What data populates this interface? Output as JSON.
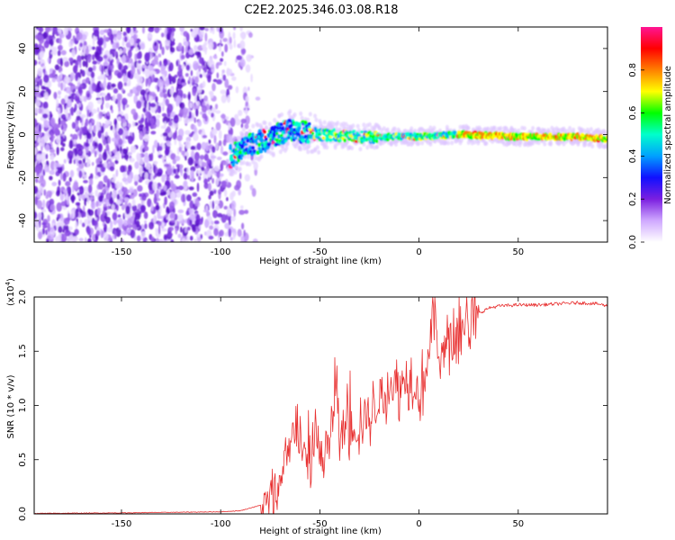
{
  "title": "C2E2.2025.346.03.08.R18",
  "chart_data": [
    {
      "type": "heatmap",
      "xlabel": "Height of straight line (km)",
      "ylabel": "Frequency (Hz)",
      "xlim": [
        -194,
        95
      ],
      "ylim": [
        -50,
        50
      ],
      "xticks": [
        -150,
        -100,
        -50,
        0,
        50
      ],
      "yticks": [
        -40,
        -20,
        0,
        20,
        40
      ],
      "xtick_labels": [
        "-150",
        "-100",
        "-50",
        "0",
        "50"
      ],
      "ytick_labels": [
        "-40",
        "-20",
        "0",
        "20",
        "40"
      ],
      "description_of_content": "noisy purple speckle for heights below about -90 km, a bright narrow ridge centered near 0 Hz from about -90 km to 95 km",
      "ridge": {
        "frequency_hz": [
          -10,
          -5,
          2,
          0,
          -1,
          -1,
          0,
          -1,
          -1,
          -2
        ],
        "height_km": [
          -95,
          -85,
          -65,
          -50,
          -30,
          0,
          20,
          50,
          80,
          95
        ]
      },
      "colorbar": {
        "label": "Normalized spectral amplitude",
        "range": [
          0.0,
          1.0
        ],
        "ticks": [
          0.0,
          0.2,
          0.4,
          0.6,
          0.8
        ],
        "tick_labels": [
          "0.0",
          "0.2",
          "0.4",
          "0.6",
          "0.8"
        ],
        "colormap": [
          "#ffffff",
          "#cfa8ff",
          "#7b1fe0",
          "#1010ff",
          "#00a0ff",
          "#00ffcc",
          "#00ff00",
          "#ffff00",
          "#ff8000",
          "#ff0000",
          "#ff1493"
        ]
      }
    },
    {
      "type": "line",
      "xlabel": "Height of straight line (km)",
      "ylabel": "SNR (10 * v/v)",
      "scale_label": "(x10",
      "scale_exponent": "4",
      "scale_suffix": ")",
      "xlim": [
        -194,
        95
      ],
      "ylim": [
        0.0,
        2.0
      ],
      "xticks": [
        -150,
        -100,
        -50,
        0,
        50
      ],
      "yticks": [
        0.0,
        0.5,
        1.0,
        1.5,
        2.0
      ],
      "xtick_labels": [
        "-150",
        "-100",
        "-50",
        "0",
        "50"
      ],
      "ytick_labels": [
        "0.0",
        "0.5",
        "1.0",
        "1.5",
        "2.0"
      ],
      "color": "#e83030",
      "series": [
        {
          "name": "SNR",
          "x": [
            -194,
            -150,
            -100,
            -90,
            -80,
            -75,
            -70,
            -65,
            -62,
            -58,
            -55,
            -52,
            -50,
            -47,
            -45,
            -42,
            -40,
            -37,
            -35,
            -30,
            -25,
            -20,
            -15,
            -10,
            -5,
            0,
            5,
            8,
            10,
            12,
            15,
            18,
            20,
            25,
            30,
            35,
            40,
            50,
            60,
            70,
            80,
            90,
            95
          ],
          "y": [
            0.005,
            0.01,
            0.02,
            0.03,
            0.08,
            0.15,
            0.3,
            0.6,
            1.0,
            0.55,
            0.45,
            0.9,
            0.5,
            0.7,
            0.6,
            1.4,
            0.7,
            0.9,
            0.8,
            0.9,
            0.95,
            1.1,
            1.25,
            1.2,
            1.35,
            1.15,
            1.5,
            2.0,
            1.3,
            1.55,
            1.6,
            1.6,
            1.75,
            1.8,
            1.85,
            1.9,
            1.92,
            1.93,
            1.93,
            1.94,
            1.95,
            1.94,
            1.92
          ],
          "max_spike": [
            8,
            2.0
          ]
        }
      ]
    }
  ]
}
